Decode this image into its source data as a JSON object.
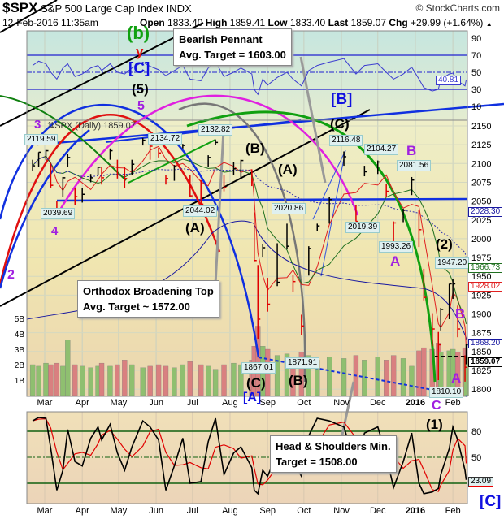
{
  "header": {
    "symbol": "$SPX",
    "name": "S&P 500 Large Cap Index",
    "exchange": "INDX",
    "copyright": "© StockCharts.com",
    "datetime": "12-Feb-2016 11:35am",
    "open_label": "Open",
    "open": "1833.40",
    "high_label": "High",
    "high": "1859.41",
    "low_label": "Low",
    "low": "1833.40",
    "last_label": "Last",
    "last": "1859.07",
    "chg_label": "Chg",
    "chg": "+29.99 (+1.64%)",
    "chg_icon": "up-triangle-icon"
  },
  "legend": "SPX (Daily) 1859.07",
  "callouts": {
    "pennant": {
      "line1": "Bearish Pennant",
      "line2": "Avg. Target = 1603.00"
    },
    "broadening": {
      "line1": "Orthodox Broadening Top",
      "line2": "Avg. Target ~ 1572.00"
    },
    "hs": {
      "line1": "Head & Shoulders Min.",
      "line2": "Target = 1508.00"
    }
  },
  "wave_labels": {
    "b_small": "(b)",
    "y": "y",
    "c_bracket_top": "[C]",
    "five_paren": "(5)",
    "five": "5",
    "three": "3",
    "four": "4",
    "two": "2",
    "a_paren_1": "(A)",
    "a_paren_2": "(A)",
    "b_paren_1": "(B)",
    "b_paren_2": "(B)",
    "c_paren_1": "(C)",
    "c_paren_2": "(C)",
    "a_bracket": "[A]",
    "b_bracket": "[B]",
    "b_purple_1": "B",
    "a_purple_1": "A",
    "b_purple_2": "B",
    "a_purple_2": "A",
    "c_purple": "C",
    "one_paren": "(1)",
    "two_paren": "(2)",
    "c_bracket_bottom": "[C]"
  },
  "price_labels": [
    "2119.59",
    "2039.69",
    "2134.72",
    "2132.82",
    "2044.02",
    "2020.86",
    "2116.48",
    "2104.27",
    "2081.56",
    "2019.39",
    "1993.26",
    "1947.20",
    "1867.01",
    "1871.91",
    "1810.10"
  ],
  "right_tags": {
    "rsi": "40.81",
    "ma_blue": "2028.30",
    "ma_green": "1966.73",
    "ma_red": "1928.02",
    "level": "1868.20",
    "last": "1859.07",
    "stoch": "23.09"
  },
  "colors": {
    "up": "#000000",
    "down": "#e00000",
    "rsi": "#3b3bd0",
    "ma_short": "#e02020",
    "ma_mid": "#207020",
    "ma_long": "#3030b0",
    "vol_up": "#8fbf70",
    "vol_down": "#d98080",
    "stoch_k": "#000000",
    "stoch_d": "#e00000"
  },
  "chart_data": [
    {
      "type": "ohlc",
      "title": "$SPX S&P 500 Large Cap Index INDX",
      "x_ticks": [
        "Mar",
        "Apr",
        "May",
        "Jun",
        "Jul",
        "Aug",
        "Sep",
        "Oct",
        "Nov",
        "Dec",
        "2016",
        "Feb"
      ],
      "x_tick_dates": [
        "2015-03-01",
        "2015-04-01",
        "2015-05-01",
        "2015-06-01",
        "2015-07-01",
        "2015-08-01",
        "2015-09-01",
        "2015-10-01",
        "2015-11-01",
        "2015-12-01",
        "2016-01-01",
        "2016-02-01"
      ],
      "y_ticks": [
        1800,
        1825,
        1850,
        1875,
        1900,
        1925,
        1950,
        1975,
        2000,
        2025,
        2050,
        2075,
        2100,
        2125,
        2150
      ],
      "ylim": [
        1795,
        2160
      ],
      "grid": true,
      "series_columns": [
        "date",
        "high",
        "low",
        "close"
      ],
      "price": [
        [
          "2015-02-19",
          2105,
          2090,
          2097
        ],
        [
          "2015-02-24",
          2115,
          2095,
          2115
        ],
        [
          "2015-03-02",
          2118,
          2105,
          2117
        ],
        [
          "2015-03-06",
          2100,
          2068,
          2071
        ],
        [
          "2015-03-11",
          2050,
          2040,
          2040
        ],
        [
          "2015-03-16",
          2082,
          2055,
          2081
        ],
        [
          "2015-03-20",
          2113,
          2095,
          2108
        ],
        [
          "2015-03-26",
          2067,
          2045,
          2056
        ],
        [
          "2015-04-01",
          2067,
          2048,
          2059
        ],
        [
          "2015-04-08",
          2086,
          2075,
          2081
        ],
        [
          "2015-04-14",
          2095,
          2085,
          2095
        ],
        [
          "2015-04-17",
          2095,
          2072,
          2081
        ],
        [
          "2015-04-24",
          2120,
          2105,
          2117
        ],
        [
          "2015-04-30",
          2105,
          2080,
          2085
        ],
        [
          "2015-05-06",
          2095,
          2067,
          2080
        ],
        [
          "2015-05-12",
          2105,
          2085,
          2099
        ],
        [
          "2015-05-21",
          2134,
          2124,
          2131
        ],
        [
          "2015-05-27",
          2126,
          2105,
          2123
        ],
        [
          "2015-06-03",
          2121,
          2108,
          2114
        ],
        [
          "2015-06-09",
          2085,
          2072,
          2080
        ],
        [
          "2015-06-16",
          2098,
          2077,
          2096
        ],
        [
          "2015-06-23",
          2126,
          2120,
          2124
        ],
        [
          "2015-06-29",
          2085,
          2056,
          2057
        ],
        [
          "2015-07-08",
          2078,
          2044,
          2046
        ],
        [
          "2015-07-14",
          2111,
          2095,
          2108
        ],
        [
          "2015-07-20",
          2132,
          2125,
          2128
        ],
        [
          "2015-07-27",
          2085,
          2063,
          2068
        ],
        [
          "2015-08-04",
          2102,
          2085,
          2093
        ],
        [
          "2015-08-10",
          2105,
          2080,
          2104
        ],
        [
          "2015-08-19",
          2092,
          2070,
          2079
        ],
        [
          "2015-08-21",
          2035,
          1970,
          1971
        ],
        [
          "2015-08-24",
          1965,
          1867,
          1893
        ],
        [
          "2015-08-28",
          1993,
          1975,
          1988
        ],
        [
          "2015-09-01",
          1948,
          1903,
          1913
        ],
        [
          "2015-09-09",
          1994,
          1937,
          1942
        ],
        [
          "2015-09-17",
          2020,
          1986,
          1990
        ],
        [
          "2015-09-22",
          1952,
          1929,
          1943
        ],
        [
          "2015-09-29",
          1899,
          1872,
          1884
        ],
        [
          "2015-10-05",
          1990,
          1951,
          1987
        ],
        [
          "2015-10-12",
          2020,
          2010,
          2017
        ],
        [
          "2015-10-22",
          2055,
          2020,
          2052
        ],
        [
          "2015-11-03",
          2116,
          2097,
          2109
        ],
        [
          "2015-11-13",
          2045,
          2023,
          2023
        ],
        [
          "2015-11-20",
          2097,
          2083,
          2089
        ],
        [
          "2015-12-01",
          2104,
          2086,
          2102
        ],
        [
          "2015-12-08",
          2073,
          2056,
          2063
        ],
        [
          "2015-12-14",
          2023,
          1993,
          2021
        ],
        [
          "2015-12-22",
          2040,
          2022,
          2038
        ],
        [
          "2015-12-29",
          2082,
          2058,
          2078
        ],
        [
          "2016-01-04",
          2038,
          1989,
          2012
        ],
        [
          "2016-01-08",
          1960,
          1918,
          1922
        ],
        [
          "2016-01-15",
          1901,
          1857,
          1880
        ],
        [
          "2016-01-20",
          1876,
          1812,
          1859
        ],
        [
          "2016-01-22",
          1908,
          1878,
          1906
        ],
        [
          "2016-01-29",
          1940,
          1893,
          1940
        ],
        [
          "2016-02-01",
          1947,
          1920,
          1940
        ],
        [
          "2016-02-05",
          1911,
          1869,
          1880
        ],
        [
          "2016-02-11",
          1845,
          1810,
          1829
        ],
        [
          "2016-02-12",
          1860,
          1833,
          1859
        ]
      ],
      "volume_ticks": [
        "1B",
        "2B",
        "3B",
        "4B",
        "5B"
      ],
      "volume_billions": [
        2.0,
        1.9,
        2.1,
        2.0,
        2.1,
        1.9,
        3.6,
        2.0,
        1.9,
        1.8,
        1.9,
        2.1,
        1.9,
        2.0,
        2.3,
        2.0,
        1.8,
        1.9,
        2.0,
        1.9,
        1.8,
        2.0,
        2.2,
        2.0,
        1.9,
        1.7,
        2.0,
        2.1,
        2.0,
        2.3,
        3.2,
        4.5,
        3.2,
        3.0,
        2.6,
        2.7,
        2.5,
        2.8,
        2.6,
        2.3,
        2.5,
        2.4,
        2.6,
        2.3,
        2.5,
        2.3,
        2.6,
        2.4,
        1.9,
        2.9,
        3.1,
        3.0,
        3.4,
        2.8,
        2.9,
        3.0,
        2.8,
        3.1,
        2.5
      ],
      "horizontal_level": 1868.2
    },
    {
      "type": "line",
      "title": "RSI",
      "y_ticks": [
        10,
        30,
        50,
        70,
        90
      ],
      "ylim": [
        0,
        100
      ],
      "last_value": 40.81,
      "values": [
        58,
        63,
        60,
        50,
        42,
        55,
        60,
        45,
        48,
        55,
        58,
        52,
        60,
        50,
        48,
        55,
        62,
        57,
        53,
        46,
        52,
        58,
        42,
        40,
        55,
        62,
        45,
        50,
        55,
        48,
        30,
        24,
        42,
        35,
        44,
        50,
        42,
        34,
        52,
        58,
        62,
        66,
        48,
        58,
        60,
        50,
        42,
        48,
        56,
        42,
        32,
        28,
        30,
        42,
        48,
        49,
        40,
        34,
        41
      ]
    },
    {
      "type": "line",
      "title": "Slow Stochastic",
      "y_ticks": [
        50,
        80
      ],
      "reference_lines": [
        20,
        50,
        80
      ],
      "ylim": [
        0,
        100
      ],
      "last_value": 23.09,
      "k_values": [
        92,
        96,
        95,
        60,
        12,
        35,
        82,
        45,
        40,
        72,
        85,
        70,
        88,
        55,
        35,
        62,
        92,
        85,
        70,
        12,
        40,
        72,
        20,
        22,
        68,
        95,
        30,
        55,
        62,
        38,
        12,
        8,
        35,
        28,
        55,
        68,
        45,
        28,
        75,
        95,
        92,
        85,
        40,
        78,
        85,
        52,
        15,
        45,
        78,
        20,
        8,
        10,
        14,
        30,
        60,
        85,
        70,
        35,
        24
      ]
    }
  ]
}
